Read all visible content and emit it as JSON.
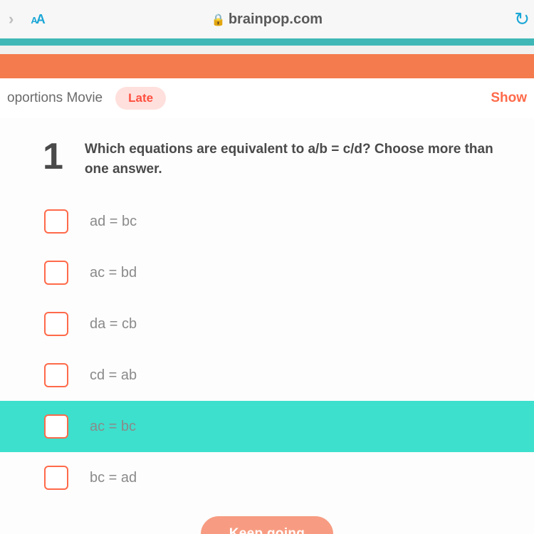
{
  "browser": {
    "domain": "brainpop.com",
    "aa_small": "A",
    "aa_large": "A"
  },
  "subbar": {
    "title_fragment": "oportions Movie",
    "late_label": "Late",
    "show_label": "Show"
  },
  "question": {
    "number": "1",
    "text": "Which equations are equivalent to a/b = c/d? Choose more than one answer."
  },
  "answers": [
    {
      "label": "ad = bc",
      "highlight": false
    },
    {
      "label": "ac = bd",
      "highlight": false
    },
    {
      "label": "da = cb",
      "highlight": false
    },
    {
      "label": "cd = ab",
      "highlight": false
    },
    {
      "label": "ac = bc",
      "highlight": true
    },
    {
      "label": "bc = ad",
      "highlight": false
    }
  ],
  "button": {
    "keep_going": "Keep going"
  },
  "colors": {
    "teal_bar": "#3fb7b7",
    "orange_bar": "#f47b4e",
    "accent": "#ff6a4a",
    "highlight": "#3de0cd",
    "button_bg": "#f79c82",
    "link_blue": "#1aa6d6"
  }
}
